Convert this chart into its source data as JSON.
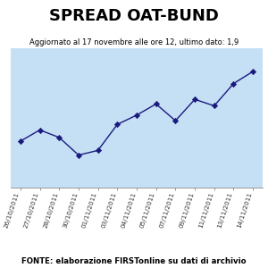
{
  "title": "SPREAD OAT-BUND",
  "subtitle": "Aggiornato al 17 novembre alle ore 12, ultimo dato: 1,9",
  "footer": "FONTE: elaborazione FIRSTonline su dati di archivio",
  "dates": [
    "26/10/2011",
    "27/10/2011",
    "28/10/2011",
    "30/10/2011",
    "01/11/2011",
    "03/11/2011",
    "04/11/2011",
    "05/11/2011",
    "07/11/2011",
    "09/11/2011",
    "11/11/2011",
    "13/11/2011",
    "14/11/2011"
  ],
  "values": [
    1.1,
    1.22,
    1.14,
    0.95,
    1.0,
    1.28,
    1.38,
    1.5,
    1.32,
    1.55,
    1.48,
    1.72,
    1.85
  ],
  "line_color": "#1a1a7e",
  "marker_color": "#1a1a7e",
  "plot_bg": "#c5dff5",
  "outer_bg": "#ffffff",
  "grid_color": "#ffffff",
  "ylim": [
    0.6,
    2.1
  ],
  "title_fontsize": 13,
  "subtitle_fontsize": 6.0,
  "footer_fontsize": 6.2,
  "tick_fontsize": 5.2
}
